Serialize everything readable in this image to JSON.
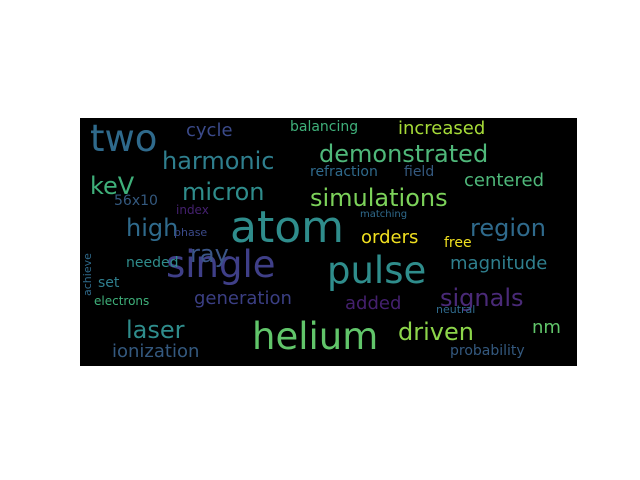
{
  "word_cloud": {
    "background": "#000000",
    "words": [
      {
        "text": "atom",
        "color": "#2f8d8c"
      },
      {
        "text": "single",
        "color": "#3f3f88"
      },
      {
        "text": "pulse",
        "color": "#2f8d8c"
      },
      {
        "text": "helium",
        "color": "#61c56a"
      },
      {
        "text": "two",
        "color": "#2f6a8c"
      },
      {
        "text": "demonstrated",
        "color": "#4fb87a"
      },
      {
        "text": "harmonic",
        "color": "#2f7f8e"
      },
      {
        "text": "simulations",
        "color": "#7cd25a"
      },
      {
        "text": "high",
        "color": "#2f6a8c"
      },
      {
        "text": "ray",
        "color": "#3b5688"
      },
      {
        "text": "micron",
        "color": "#2f8d8c"
      },
      {
        "text": "region",
        "color": "#2f6a8c"
      },
      {
        "text": "signals",
        "color": "#4a2a78"
      },
      {
        "text": "driven",
        "color": "#8cd54a"
      },
      {
        "text": "laser",
        "color": "#2f8d8c"
      },
      {
        "text": "keV",
        "color": "#3fb07a"
      },
      {
        "text": "increased",
        "color": "#a6db38"
      },
      {
        "text": "centered",
        "color": "#4fb87a"
      },
      {
        "text": "magnitude",
        "color": "#2f7f8e"
      },
      {
        "text": "generation",
        "color": "#3b3f84"
      },
      {
        "text": "ionization",
        "color": "#34597f"
      },
      {
        "text": "orders",
        "color": "#f0e020"
      },
      {
        "text": "added",
        "color": "#44206e"
      },
      {
        "text": "cycle",
        "color": "#3b4a8a"
      },
      {
        "text": "nm",
        "color": "#61c56a"
      },
      {
        "text": "balancing",
        "color": "#3fb07a"
      },
      {
        "text": "refraction",
        "color": "#2f6a8c"
      },
      {
        "text": "field",
        "color": "#34597f"
      },
      {
        "text": "56x10",
        "color": "#34597f"
      },
      {
        "text": "index",
        "color": "#44206e"
      },
      {
        "text": "phase",
        "color": "#3b4a8a"
      },
      {
        "text": "needed",
        "color": "#2f8d8c"
      },
      {
        "text": "set",
        "color": "#2f7f8e"
      },
      {
        "text": "electrons",
        "color": "#3fb07a"
      },
      {
        "text": "probability",
        "color": "#34597f"
      },
      {
        "text": "free",
        "color": "#f0e020"
      },
      {
        "text": "neutral",
        "color": "#2f6a8c"
      },
      {
        "text": "matching",
        "color": "#2f6a8c"
      },
      {
        "text": "achieve",
        "color": "#2f6a8c"
      }
    ]
  }
}
